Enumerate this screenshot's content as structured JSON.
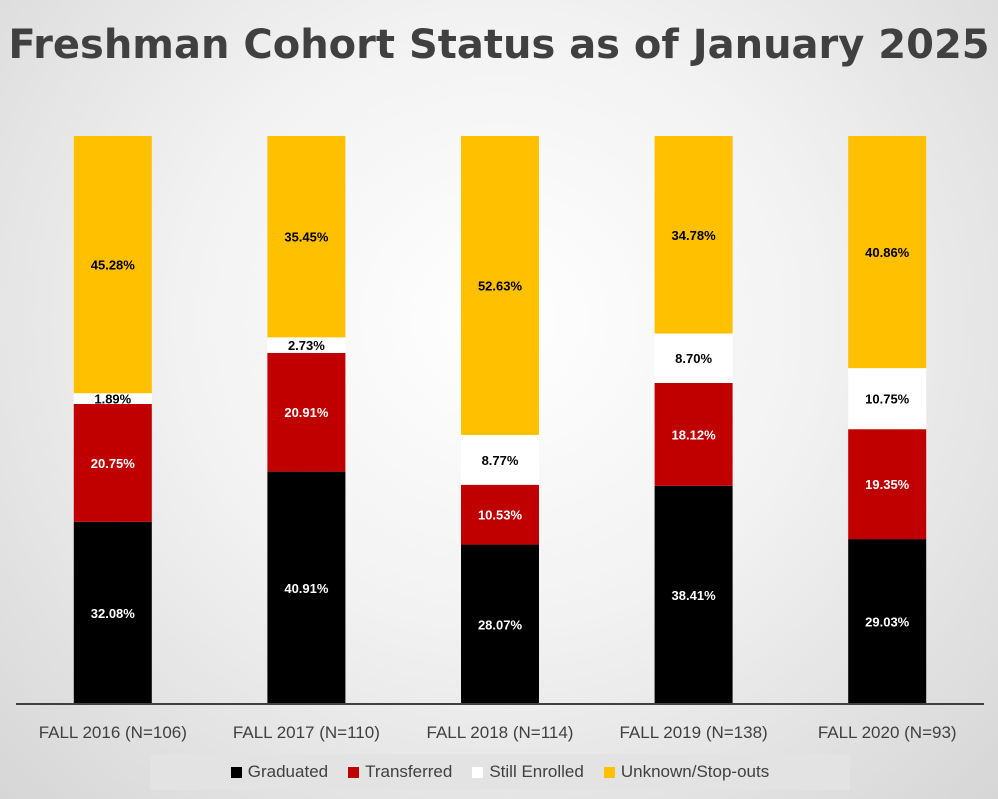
{
  "chart_data": {
    "type": "bar",
    "stacked": true,
    "normalized": true,
    "title": "Freshman Cohort Status as of January 2025",
    "categories": [
      "FALL 2016 (N=106)",
      "FALL 2017 (N=110)",
      "FALL 2018 (N=114)",
      "FALL 2019 (N=138)",
      "FALL 2020 (N=93)"
    ],
    "series": [
      {
        "name": "Graduated",
        "color": "#000000",
        "label_color": "#ffffff",
        "values": [
          32.08,
          40.91,
          28.07,
          38.41,
          29.03
        ],
        "labels": [
          "32.08%",
          "40.91%",
          "28.07%",
          "38.41%",
          "29.03%"
        ]
      },
      {
        "name": "Transferred",
        "color": "#c00000",
        "label_color": "#ffffff",
        "values": [
          20.75,
          20.91,
          10.53,
          18.12,
          19.35
        ],
        "labels": [
          "20.75%",
          "20.91%",
          "10.53%",
          "18.12%",
          "19.35%"
        ]
      },
      {
        "name": "Still Enrolled",
        "color": "#ffffff",
        "label_color": "#000000",
        "values": [
          1.89,
          2.73,
          8.77,
          8.7,
          10.75
        ],
        "labels": [
          "1.89%",
          "2.73%",
          "8.77%",
          "8.70%",
          "10.75%"
        ]
      },
      {
        "name": "Unknown/Stop-outs",
        "color": "#ffc000",
        "label_color": "#000000",
        "values": [
          45.28,
          35.45,
          52.63,
          34.78,
          40.86
        ],
        "labels": [
          "45.28%",
          "35.45%",
          "52.63%",
          "34.78%",
          "40.86%"
        ]
      }
    ],
    "ylim": [
      0,
      100
    ],
    "grid": false,
    "legend_position": "bottom"
  }
}
